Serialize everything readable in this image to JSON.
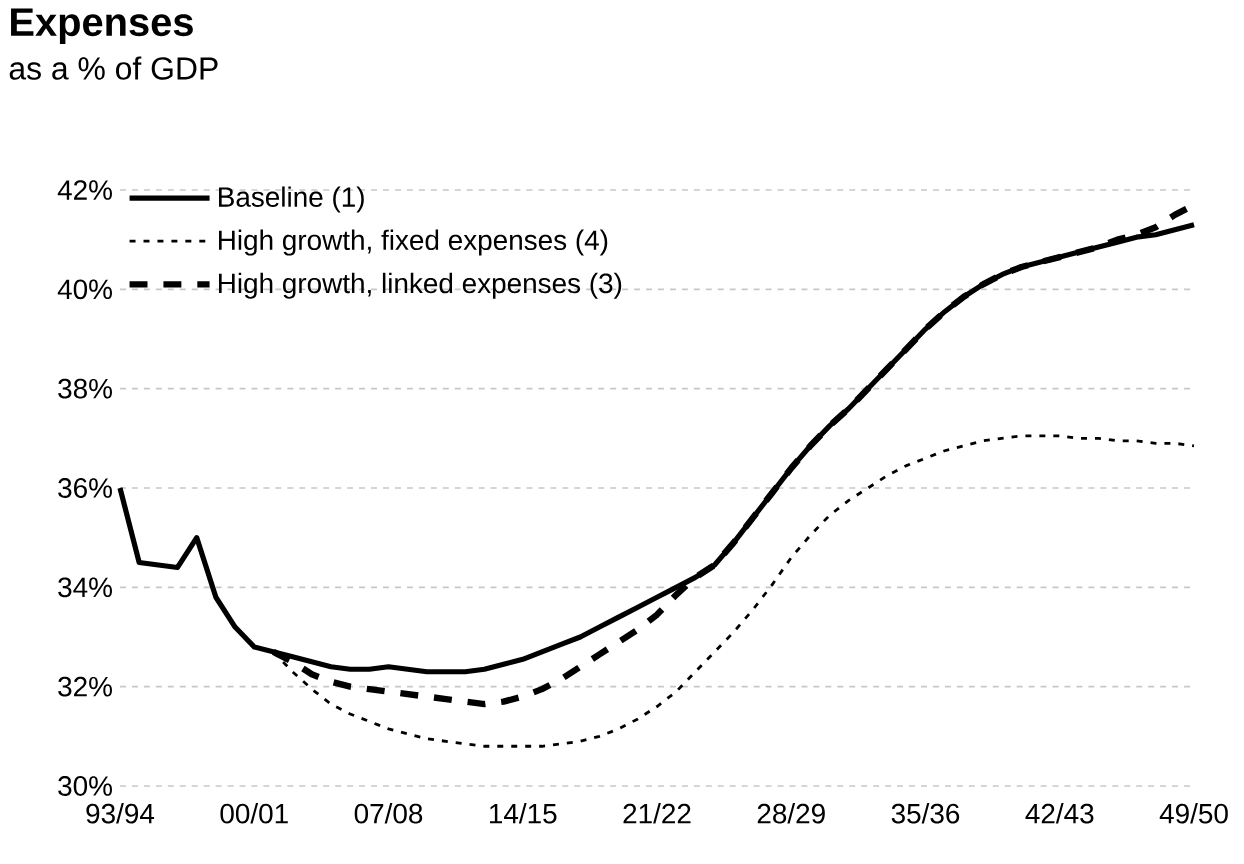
{
  "chart_data": {
    "type": "line",
    "title": "Expenses",
    "subtitle": "as a % of GDP",
    "categories": [
      "93/94",
      null,
      null,
      null,
      null,
      null,
      null,
      "00/01",
      null,
      null,
      null,
      null,
      null,
      null,
      "07/08",
      null,
      null,
      null,
      null,
      null,
      null,
      "14/15",
      null,
      null,
      null,
      null,
      null,
      null,
      "21/22",
      null,
      null,
      null,
      null,
      null,
      null,
      "28/29",
      null,
      null,
      null,
      null,
      null,
      null,
      "35/36",
      null,
      null,
      null,
      null,
      null,
      null,
      "42/43",
      null,
      null,
      null,
      null,
      null,
      null,
      "49/50"
    ],
    "series": [
      {
        "name": "Baseline (1)",
        "color": "#000000",
        "line_style": "solid",
        "values": [
          36.0,
          34.5,
          34.45,
          34.4,
          35.0,
          33.8,
          33.2,
          32.8,
          32.7,
          32.6,
          32.5,
          32.4,
          32.35,
          32.35,
          32.4,
          32.35,
          32.3,
          32.3,
          32.3,
          32.35,
          32.45,
          32.55,
          32.7,
          32.85,
          33.0,
          33.2,
          33.4,
          33.6,
          33.8,
          34.0,
          34.2,
          34.45,
          34.9,
          35.4,
          35.9,
          36.4,
          36.85,
          37.25,
          37.6,
          38.0,
          38.4,
          38.8,
          39.2,
          39.55,
          39.85,
          40.1,
          40.3,
          40.45,
          40.55,
          40.65,
          40.75,
          40.85,
          40.95,
          41.05,
          41.1,
          41.2,
          41.3
        ]
      },
      {
        "name": "High growth, fixed expenses (4)",
        "color": "#000000",
        "line_style": "dotted",
        "values": [
          null,
          null,
          null,
          null,
          null,
          null,
          null,
          null,
          32.7,
          32.3,
          31.95,
          31.65,
          31.45,
          31.3,
          31.15,
          31.05,
          30.95,
          30.9,
          30.85,
          30.8,
          30.8,
          30.8,
          30.8,
          30.85,
          30.9,
          31.0,
          31.15,
          31.35,
          31.6,
          31.9,
          32.3,
          32.7,
          33.1,
          33.55,
          34.05,
          34.6,
          35.05,
          35.45,
          35.75,
          36.0,
          36.25,
          36.45,
          36.6,
          36.75,
          36.85,
          36.95,
          37.0,
          37.05,
          37.05,
          37.05,
          37.0,
          37.0,
          36.95,
          36.95,
          36.9,
          36.9,
          36.85
        ]
      },
      {
        "name": "High growth, linked expenses (3)",
        "color": "#000000",
        "line_style": "dashed",
        "values": [
          null,
          null,
          null,
          null,
          null,
          null,
          null,
          null,
          32.7,
          32.5,
          32.25,
          32.1,
          32.0,
          31.95,
          31.9,
          31.85,
          31.8,
          31.75,
          31.7,
          31.65,
          31.7,
          31.8,
          31.95,
          32.15,
          32.4,
          32.65,
          32.9,
          33.15,
          33.45,
          33.85,
          34.2,
          34.45,
          34.9,
          35.4,
          35.9,
          36.4,
          36.85,
          37.25,
          37.6,
          38.0,
          38.4,
          38.8,
          39.2,
          39.55,
          39.85,
          40.1,
          40.3,
          40.45,
          40.55,
          40.65,
          40.75,
          40.85,
          41.0,
          41.1,
          41.25,
          41.5,
          41.7
        ]
      }
    ],
    "ylim": [
      30,
      42
    ],
    "yticks": [
      {
        "value": 30,
        "label": "30%"
      },
      {
        "value": 32,
        "label": "32%"
      },
      {
        "value": 34,
        "label": "34%"
      },
      {
        "value": 36,
        "label": "36%"
      },
      {
        "value": 38,
        "label": "38%"
      },
      {
        "value": 40,
        "label": "40%"
      },
      {
        "value": 42,
        "label": "42%"
      }
    ],
    "grid": "y",
    "legend": "top left"
  }
}
